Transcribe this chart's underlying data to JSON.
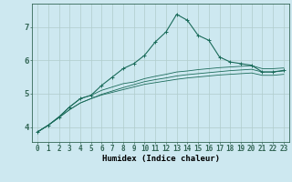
{
  "xlabel": "Humidex (Indice chaleur)",
  "bg_color": "#cde8f0",
  "grid_color": "#b0cccc",
  "line_color": "#1a6b5a",
  "spine_color": "#336655",
  "x_ticks": [
    0,
    1,
    2,
    3,
    4,
    5,
    6,
    7,
    8,
    9,
    10,
    11,
    12,
    13,
    14,
    15,
    16,
    17,
    18,
    19,
    20,
    21,
    22,
    23
  ],
  "y_ticks": [
    4,
    5,
    6,
    7
  ],
  "ylim": [
    3.55,
    7.7
  ],
  "xlim": [
    -0.5,
    23.5
  ],
  "lines": [
    [
      3.85,
      4.05,
      4.3,
      4.6,
      4.85,
      4.95,
      5.25,
      5.5,
      5.75,
      5.9,
      6.15,
      6.55,
      6.85,
      7.38,
      7.2,
      6.75,
      6.6,
      6.1,
      5.95,
      5.9,
      5.85,
      5.65,
      5.65,
      5.7
    ],
    [
      3.85,
      4.05,
      4.3,
      4.6,
      4.85,
      4.95,
      5.1,
      5.2,
      5.3,
      5.35,
      5.45,
      5.52,
      5.58,
      5.65,
      5.68,
      5.72,
      5.75,
      5.78,
      5.8,
      5.82,
      5.84,
      5.75,
      5.75,
      5.77
    ],
    [
      3.85,
      4.05,
      4.28,
      4.52,
      4.72,
      4.85,
      4.98,
      5.08,
      5.18,
      5.27,
      5.36,
      5.42,
      5.47,
      5.53,
      5.57,
      5.6,
      5.63,
      5.66,
      5.69,
      5.71,
      5.73,
      5.65,
      5.65,
      5.68
    ],
    [
      3.85,
      4.05,
      4.28,
      4.52,
      4.72,
      4.85,
      4.96,
      5.04,
      5.12,
      5.2,
      5.28,
      5.33,
      5.38,
      5.43,
      5.47,
      5.5,
      5.53,
      5.56,
      5.58,
      5.6,
      5.62,
      5.55,
      5.55,
      5.58
    ]
  ],
  "tick_fontsize": 5.5,
  "xlabel_fontsize": 6.5,
  "ytick_fontsize": 6.5
}
